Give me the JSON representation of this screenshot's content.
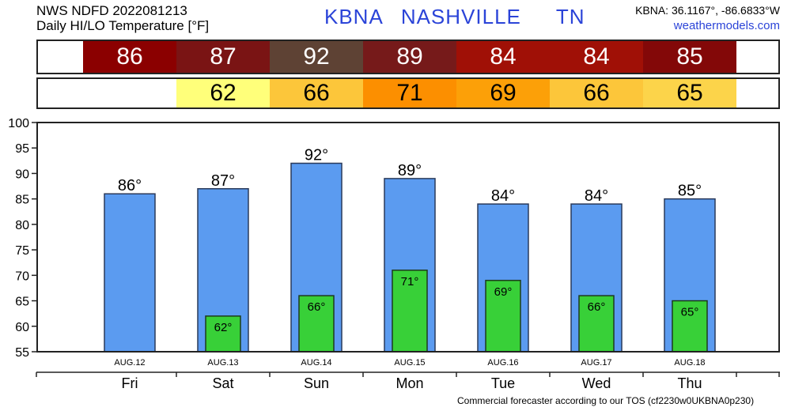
{
  "header": {
    "line1": "NWS NDFD 2022081213",
    "line2": "Daily HI/LO Temperature [°F]",
    "station": "KBNA",
    "city": "NASHVILLE",
    "state": "TN",
    "coords": "KBNA: 36.1167°, -86.6833°W",
    "site": "weathermodels.com"
  },
  "footer": "Commercial forecaster according to our TOS (cf2230w0UKBNA0p230)",
  "hi_row": [
    {
      "value": "86",
      "color": "#8b0000"
    },
    {
      "value": "87",
      "color": "#7a1414"
    },
    {
      "value": "92",
      "color": "#5e4234"
    },
    {
      "value": "89",
      "color": "#761a1a"
    },
    {
      "value": "84",
      "color": "#a01006"
    },
    {
      "value": "84",
      "color": "#a01006"
    },
    {
      "value": "85",
      "color": "#830808"
    }
  ],
  "lo_row": [
    {
      "value": "",
      "color": "#ffffff"
    },
    {
      "value": "62",
      "color": "#ffff7a"
    },
    {
      "value": "66",
      "color": "#fcc63a"
    },
    {
      "value": "71",
      "color": "#fc8f00"
    },
    {
      "value": "69",
      "color": "#fca008"
    },
    {
      "value": "66",
      "color": "#fcc63a"
    },
    {
      "value": "65",
      "color": "#fcd44a"
    }
  ],
  "chart_data": {
    "type": "bar",
    "categories": [
      "Fri",
      "Sat",
      "Sun",
      "Mon",
      "Tue",
      "Wed",
      "Thu"
    ],
    "dates": [
      "AUG.12",
      "AUG.13",
      "AUG.14",
      "AUG.15",
      "AUG.16",
      "AUG.17",
      "AUG.18"
    ],
    "series": [
      {
        "values": [
          86,
          87,
          92,
          89,
          84,
          84,
          85
        ],
        "color": "#5b9bf0"
      },
      {
        "values": [
          null,
          62,
          66,
          71,
          69,
          66,
          65
        ],
        "color": "#38d038"
      }
    ],
    "ylim": [
      55,
      100
    ],
    "yticks": [
      55,
      60,
      65,
      70,
      75,
      80,
      85,
      90,
      95,
      100
    ],
    "grid": false
  }
}
